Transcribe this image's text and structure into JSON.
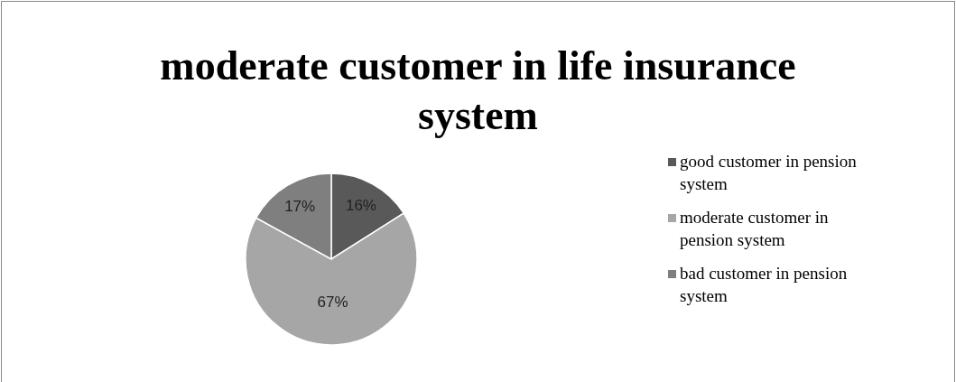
{
  "chart_data": {
    "type": "pie",
    "title": "moderate customer in life insurance system",
    "categories": [
      "good customer in pension system",
      "moderate customer in pension system",
      "bad customer in pension system"
    ],
    "values": [
      16,
      67,
      17
    ],
    "colors": [
      "#595959",
      "#a6a6a6",
      "#7f7f7f"
    ],
    "value_labels": [
      "16%",
      "67%",
      "17%"
    ],
    "legend": "right"
  }
}
